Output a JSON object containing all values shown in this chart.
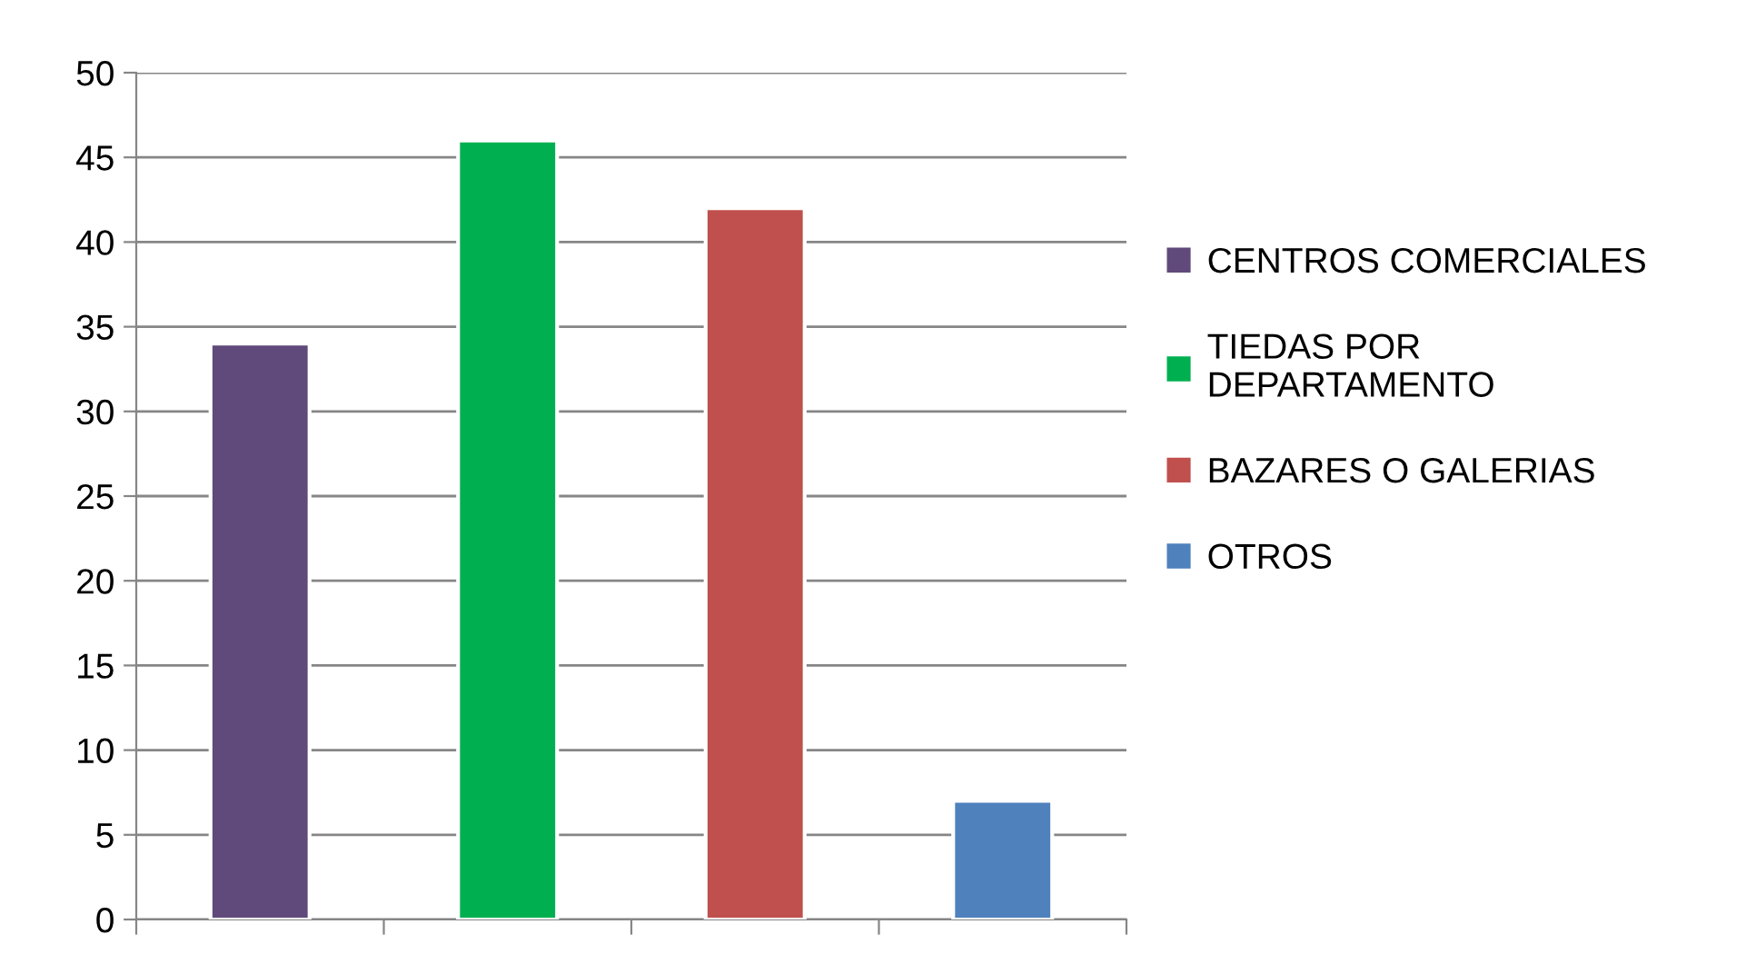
{
  "chart_data": {
    "type": "bar",
    "categories": [
      null,
      null,
      null,
      null
    ],
    "series": [
      {
        "name": "CENTROS COMERCIALES",
        "color": "#604a7b",
        "values": [
          34,
          null,
          null,
          null
        ]
      },
      {
        "name": "TIEDAS POR\nDEPARTAMENTO",
        "color": "#00b050",
        "values": [
          null,
          46,
          null,
          null
        ]
      },
      {
        "name": "BAZARES O GALERIAS",
        "color": "#c0504d",
        "values": [
          null,
          null,
          42,
          null
        ]
      },
      {
        "name": "OTROS",
        "color": "#4f81bd",
        "values": [
          null,
          null,
          null,
          7
        ]
      }
    ],
    "ylim": [
      0,
      50
    ],
    "yticks": [
      0,
      5,
      10,
      15,
      20,
      25,
      30,
      35,
      40,
      45,
      50
    ],
    "grid": "y",
    "legend": "right"
  }
}
